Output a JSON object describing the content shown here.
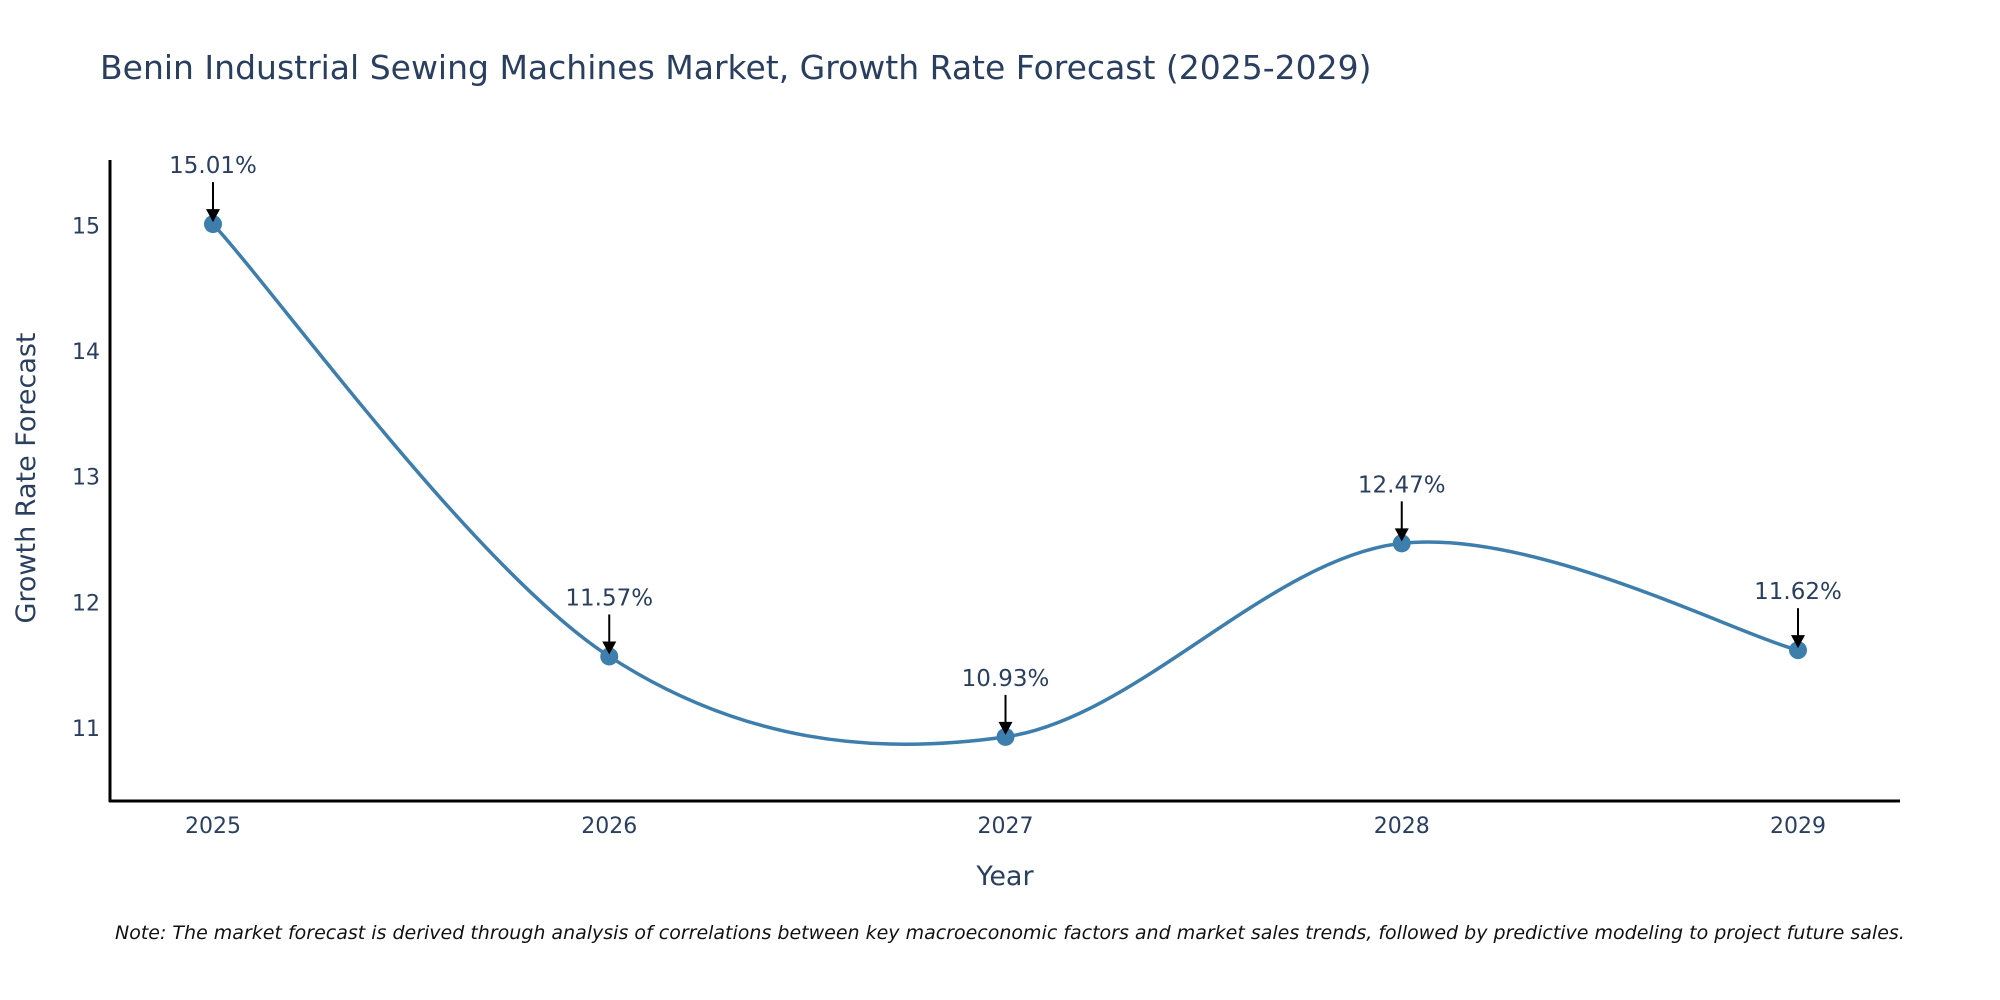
{
  "chart_data": {
    "type": "line",
    "title": "Benin Industrial Sewing Machines Market, Growth Rate Forecast (2025-2029)",
    "xlabel": "Year",
    "ylabel": "Growth Rate Forecast",
    "categories": [
      "2025",
      "2026",
      "2027",
      "2028",
      "2029"
    ],
    "values": [
      15.01,
      11.57,
      10.93,
      12.47,
      11.62
    ],
    "data_labels": [
      "15.01%",
      "11.57%",
      "10.93%",
      "12.47%",
      "11.62%"
    ],
    "yticks": [
      11,
      12,
      13,
      14,
      15
    ],
    "ylim": [
      10.42,
      15.52
    ],
    "line_color": "#3d7ead",
    "marker_color": "#3d7ead",
    "arrow_color": "#000000",
    "grid": false,
    "legend": "none",
    "note": "Note: The market forecast is derived through analysis of correlations between key macroeconomic factors and market sales trends, followed by predictive modeling to project future sales."
  }
}
